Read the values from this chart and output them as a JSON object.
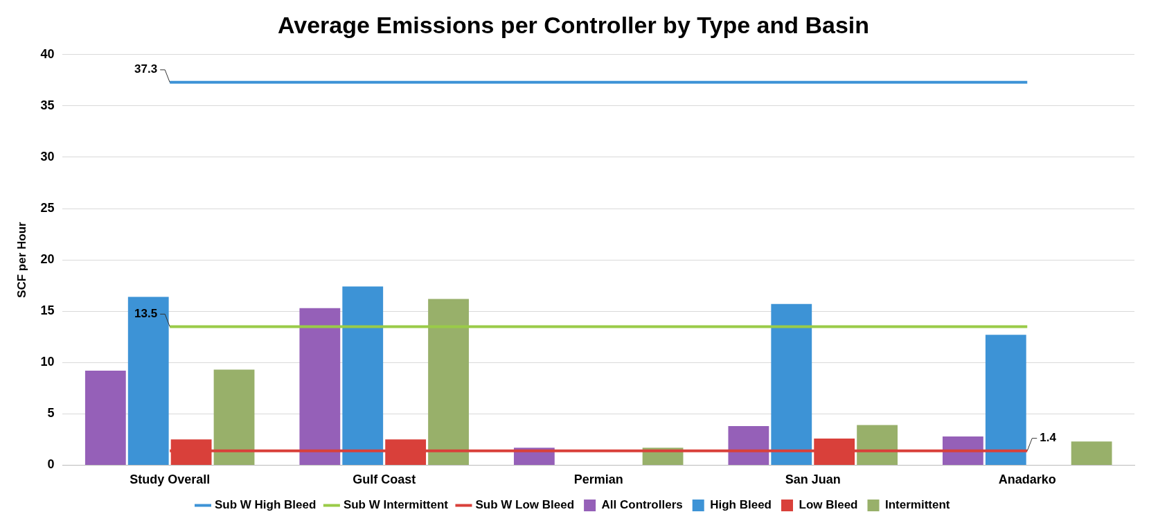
{
  "chart_data": {
    "type": "bar",
    "title": "Average Emissions per Controller by Type and Basin",
    "ylabel": "SCF per Hour",
    "categories": [
      "Study Overall",
      "Gulf Coast",
      "Permian",
      "San Juan",
      "Anadarko"
    ],
    "series": [
      {
        "name": "All Controllers",
        "color": "#9560b8",
        "values": [
          9.2,
          15.3,
          1.7,
          3.8,
          2.8
        ]
      },
      {
        "name": "High Bleed",
        "color": "#3d93d6",
        "values": [
          16.4,
          17.4,
          null,
          15.7,
          12.7
        ]
      },
      {
        "name": "Low Bleed",
        "color": "#d9403a",
        "values": [
          2.5,
          2.5,
          null,
          2.6,
          null
        ]
      },
      {
        "name": "Intermittent",
        "color": "#98b06a",
        "values": [
          9.3,
          16.2,
          1.7,
          3.9,
          2.3
        ]
      },
      {
        "name": "Sub W High Bleed",
        "type": "line",
        "color": "#3d93d6",
        "values": [
          37.3,
          37.3,
          37.3,
          37.3,
          37.3
        ],
        "value_labels": [
          "37.3",
          null,
          null,
          null,
          null
        ]
      },
      {
        "name": "Sub W Intermittent",
        "type": "line",
        "color": "#9acb48",
        "values": [
          13.5,
          13.5,
          13.5,
          13.5,
          13.5
        ],
        "value_labels": [
          "13.5",
          null,
          null,
          null,
          null
        ]
      },
      {
        "name": "Sub W Low Bleed",
        "type": "line",
        "color": "#d9403a",
        "values": [
          1.4,
          1.4,
          1.4,
          1.4,
          1.4
        ],
        "value_labels": [
          null,
          null,
          null,
          null,
          "1.4"
        ]
      }
    ],
    "ylim": [
      0,
      40
    ],
    "yticks": [
      0,
      5,
      10,
      15,
      20,
      25,
      30,
      35,
      40
    ],
    "grid": "y",
    "legend": "bottom",
    "marker": "none"
  }
}
